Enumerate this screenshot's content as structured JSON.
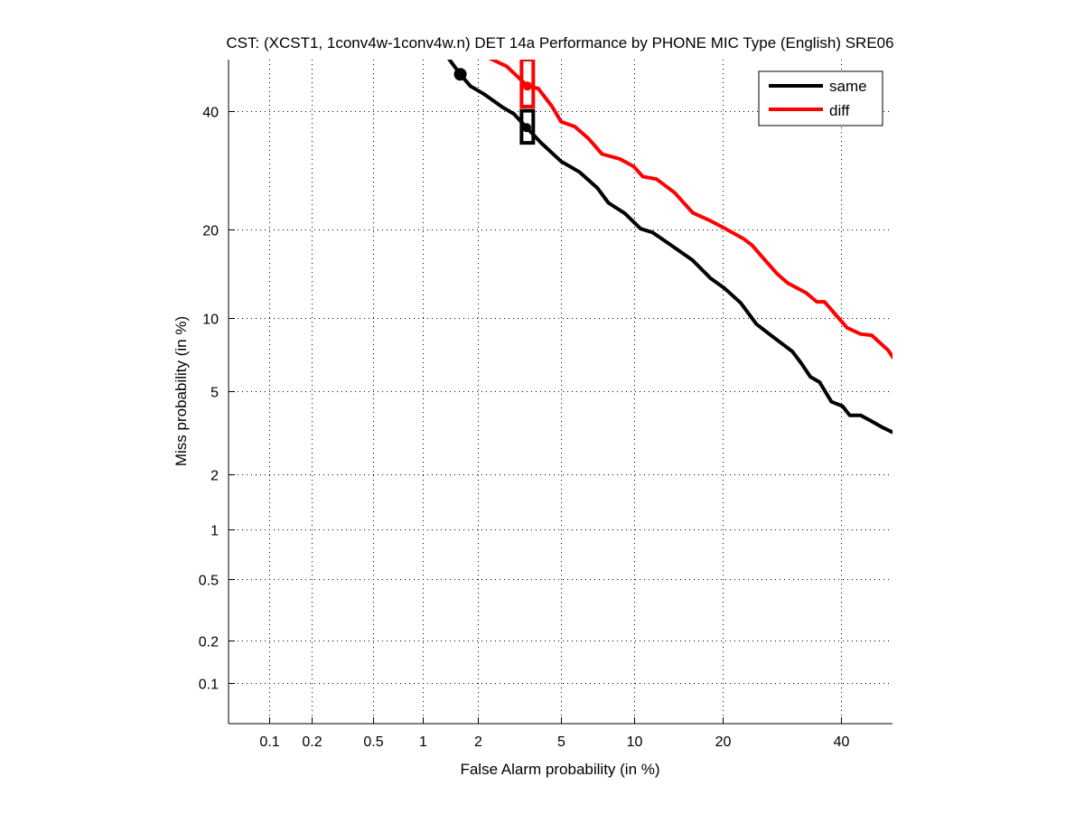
{
  "chart_data": {
    "type": "line",
    "subtype": "DET curve (normal-deviate scale)",
    "title": "CST: (XCST1, 1conv4w-1conv4w.n) DET 14a Performance by PHONE MIC Type (English) SRE06",
    "xlabel": "False Alarm probability (in %)",
    "ylabel": "Miss probability (in %)",
    "xlim": [
      0.05,
      50
    ],
    "ylim": [
      0.05,
      50
    ],
    "xscale": "probit",
    "yscale": "probit",
    "grid": true,
    "grid_style": "dotted",
    "xticks": [
      0.1,
      0.2,
      0.5,
      1,
      2,
      5,
      10,
      20,
      40
    ],
    "xtick_labels": [
      "0.1",
      "0.2",
      "0.5",
      "1",
      "2",
      "5",
      "10",
      "20",
      "40"
    ],
    "yticks": [
      0.1,
      0.2,
      0.5,
      1,
      2,
      5,
      10,
      20,
      40
    ],
    "ytick_labels": [
      "0.1",
      "0.2",
      "0.5",
      "1",
      "2",
      "5",
      "10",
      "20",
      "40"
    ],
    "legend_position": "top-right",
    "series": [
      {
        "name": "same",
        "color": "#000000",
        "x": [
          1.38,
          1.61,
          1.82,
          2.15,
          2.66,
          3.03,
          3.49,
          4.08,
          5.03,
          6.03,
          7.19,
          7.96,
          9.23,
          10.6,
          11.7,
          13.5,
          16.1,
          18.4,
          20.2,
          22.6,
          25.0,
          27.9,
          31.0,
          32.6,
          34.2,
          35.9,
          38.1,
          40.2,
          41.6,
          43.7,
          45.5,
          48.2,
          50.5
        ],
        "y": [
          50.4,
          47.1,
          44.8,
          43.2,
          40.7,
          39.4,
          36.8,
          34.0,
          30.7,
          28.9,
          26.2,
          23.9,
          22.3,
          20.1,
          19.6,
          18.0,
          16.0,
          13.9,
          12.9,
          11.4,
          9.5,
          8.4,
          7.4,
          6.6,
          5.8,
          5.5,
          4.5,
          4.3,
          3.9,
          3.9,
          3.7,
          3.4,
          3.2
        ],
        "min_dcf_point": {
          "x": 1.61,
          "y": 47.1,
          "marker": "circle"
        },
        "actual_dcf_point": {
          "x": 3.49,
          "y": 36.8,
          "marker": "dot"
        },
        "confidence_box": {
          "x": [
            3.3,
            3.75
          ],
          "y": [
            34.0,
            40.0
          ]
        }
      },
      {
        "name": "diff",
        "color": "#ff0000",
        "x": [
          2.26,
          2.79,
          3.52,
          3.96,
          4.58,
          5.03,
          5.77,
          6.59,
          7.5,
          8.86,
          10.0,
          10.8,
          12.1,
          14.0,
          16.1,
          18.4,
          20.2,
          22.9,
          24.3,
          26.4,
          28.4,
          30.2,
          33.4,
          35.4,
          36.8,
          39.3,
          41.1,
          43.7,
          45.9,
          49.1,
          50.5
        ],
        "y": [
          50.4,
          48.7,
          44.8,
          44.3,
          40.8,
          37.9,
          37.0,
          34.8,
          32.0,
          31.1,
          29.8,
          28.1,
          27.7,
          25.5,
          22.4,
          21.2,
          20.2,
          18.8,
          17.9,
          16.0,
          14.4,
          13.4,
          12.4,
          11.5,
          11.5,
          10.1,
          9.2,
          8.7,
          8.6,
          7.5,
          6.8
        ],
        "actual_dcf_point": {
          "x": 3.52,
          "y": 44.8,
          "marker": "dot"
        },
        "confidence_box": {
          "x": [
            3.3,
            3.75
          ],
          "y": [
            40.8,
            50.0
          ]
        }
      }
    ]
  }
}
